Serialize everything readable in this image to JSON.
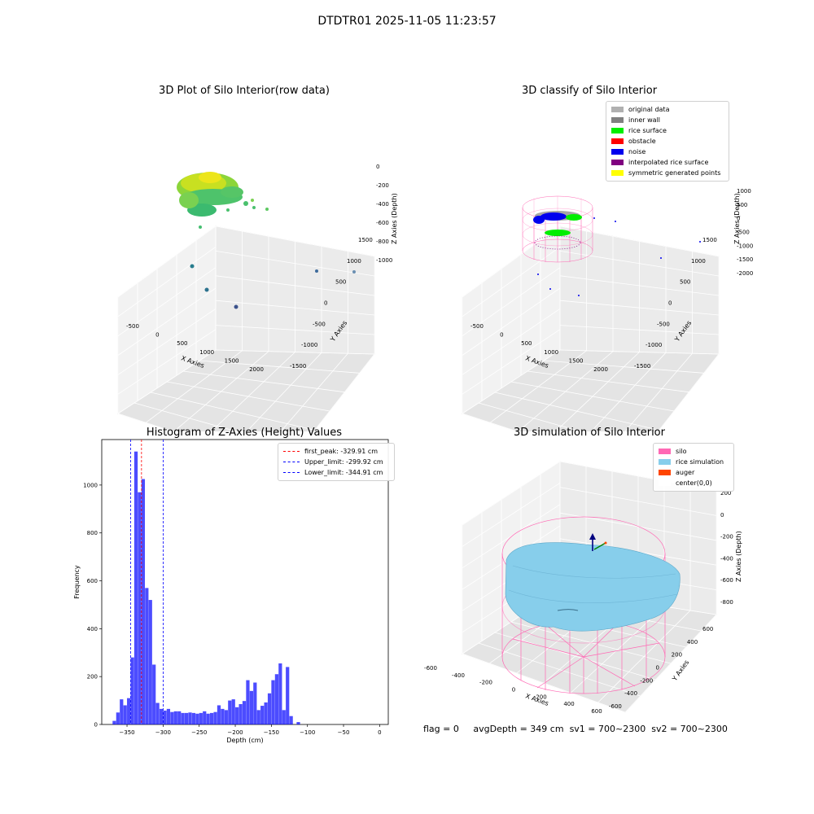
{
  "suptitle": "DTDTR01 2025-11-05 11:23:57",
  "panels": {
    "raw": {
      "title": "3D Plot of Silo Interior(row data)",
      "xlabel": "X Axies",
      "ylabel": "Y Axies",
      "zlabel": "Z Axies (Depth)",
      "xticks": [
        "-500",
        "0",
        "500",
        "1000",
        "1500",
        "2000"
      ],
      "yticks": [
        "-1500",
        "-1000",
        "-500",
        "0",
        "500",
        "1000",
        "1500"
      ],
      "zticks": [
        "0",
        "-200",
        "-400",
        "-600",
        "-800",
        "-1000"
      ]
    },
    "classify": {
      "title": "3D classify of Silo Interior",
      "xlabel": "X Axies",
      "ylabel": "Y Axies",
      "zlabel": "Z Axies (Depth)",
      "xticks": [
        "-500",
        "0",
        "500",
        "1000",
        "1500",
        "2000"
      ],
      "yticks": [
        "-1500",
        "-1000",
        "-500",
        "0",
        "500",
        "1000",
        "1500"
      ],
      "zticks": [
        "1000",
        "500",
        "0",
        "-500",
        "-1000",
        "-1500",
        "-2000"
      ],
      "legend": [
        {
          "label": "original data",
          "color": "#b0b0b0"
        },
        {
          "label": "inner wall",
          "color": "#808080"
        },
        {
          "label": "rice surface",
          "color": "#00ee00"
        },
        {
          "label": "obstacle",
          "color": "#ff0000"
        },
        {
          "label": "noise",
          "color": "#0000ee"
        },
        {
          "label": "interpolated rice surface",
          "color": "#800080"
        },
        {
          "label": "symmetric generated points",
          "color": "#ffff00"
        }
      ]
    },
    "simulation": {
      "title": "3D simulation of Silo Interior",
      "xlabel": "X Axies",
      "ylabel": "Y Axies",
      "zlabel": "Z Axies (Depth)",
      "xticks": [
        "-600",
        "-400",
        "-200",
        "0",
        "200",
        "400",
        "600"
      ],
      "yticks": [
        "-600",
        "-400",
        "-200",
        "0",
        "200",
        "400",
        "600"
      ],
      "zticks": [
        "200",
        "0",
        "-200",
        "-400",
        "-600",
        "-800"
      ],
      "legend": [
        {
          "label": "silo",
          "color": "#ff69b4"
        },
        {
          "label": "rice simulation",
          "color": "#87ceeb"
        },
        {
          "label": "auger",
          "color": "#ff4500"
        },
        {
          "label": "center(0,0)",
          "color": "#ffffff"
        }
      ]
    }
  },
  "status": {
    "flag": "flag = 0",
    "avg": "avgDepth = 349 cm",
    "sv1": "sv1 = 700~2300",
    "sv2": "sv2 = 700~2300"
  },
  "chart_data": [
    {
      "type": "bar",
      "title": "Histogram of Z-Axies (Height) Values",
      "xlabel": "Depth (cm)",
      "ylabel": "Frequency",
      "xlim": [
        -385,
        12
      ],
      "ylim": [
        0,
        1190
      ],
      "bin_width": 5,
      "bin_start": [
        -370,
        -365,
        -360,
        -355,
        -350,
        -345,
        -340,
        -335,
        -330,
        -325,
        -320,
        -315,
        -310,
        -305,
        -300,
        -295,
        -290,
        -285,
        -280,
        -275,
        -270,
        -265,
        -260,
        -255,
        -250,
        -245,
        -240,
        -235,
        -230,
        -225,
        -220,
        -215,
        -210,
        -205,
        -200,
        -195,
        -190,
        -185,
        -180,
        -175,
        -170,
        -165,
        -160,
        -155,
        -150,
        -145,
        -140,
        -135,
        -130,
        -125,
        -120,
        -115,
        -110,
        -105,
        -100,
        -95,
        -90,
        -85,
        -80,
        -75,
        -70,
        -65,
        -60,
        -55,
        -50,
        -45,
        -40,
        -35,
        -30,
        -25,
        -20,
        -15,
        -10,
        -5,
        0
      ],
      "values": [
        15,
        50,
        105,
        80,
        110,
        280,
        1140,
        970,
        1025,
        570,
        520,
        250,
        90,
        65,
        58,
        65,
        52,
        55,
        55,
        48,
        48,
        50,
        48,
        45,
        48,
        55,
        45,
        48,
        52,
        80,
        65,
        60,
        100,
        105,
        72,
        85,
        98,
        185,
        140,
        175,
        60,
        78,
        92,
        130,
        185,
        210,
        255,
        60,
        240,
        35,
        0,
        10,
        0,
        0,
        0,
        0,
        0,
        0,
        0,
        0,
        0,
        0,
        0,
        0,
        0,
        0,
        0,
        0,
        0,
        0,
        0,
        0,
        0,
        0,
        0
      ],
      "xticks": [
        "−350",
        "−300",
        "−250",
        "−200",
        "−150",
        "−100",
        "−50",
        "0"
      ],
      "yticks": [
        "0",
        "200",
        "400",
        "600",
        "800",
        "1000"
      ],
      "color": "#0000ff",
      "lines": [
        {
          "label": "first_peak: -329.91 cm",
          "x": -329.91,
          "color": "#ff0000"
        },
        {
          "label": "Upper_limit: -299.92 cm",
          "x": -299.92,
          "color": "#0000ff"
        },
        {
          "label": "Lower_limit: -344.91 cm",
          "x": -344.91,
          "color": "#0000ff"
        }
      ]
    }
  ]
}
